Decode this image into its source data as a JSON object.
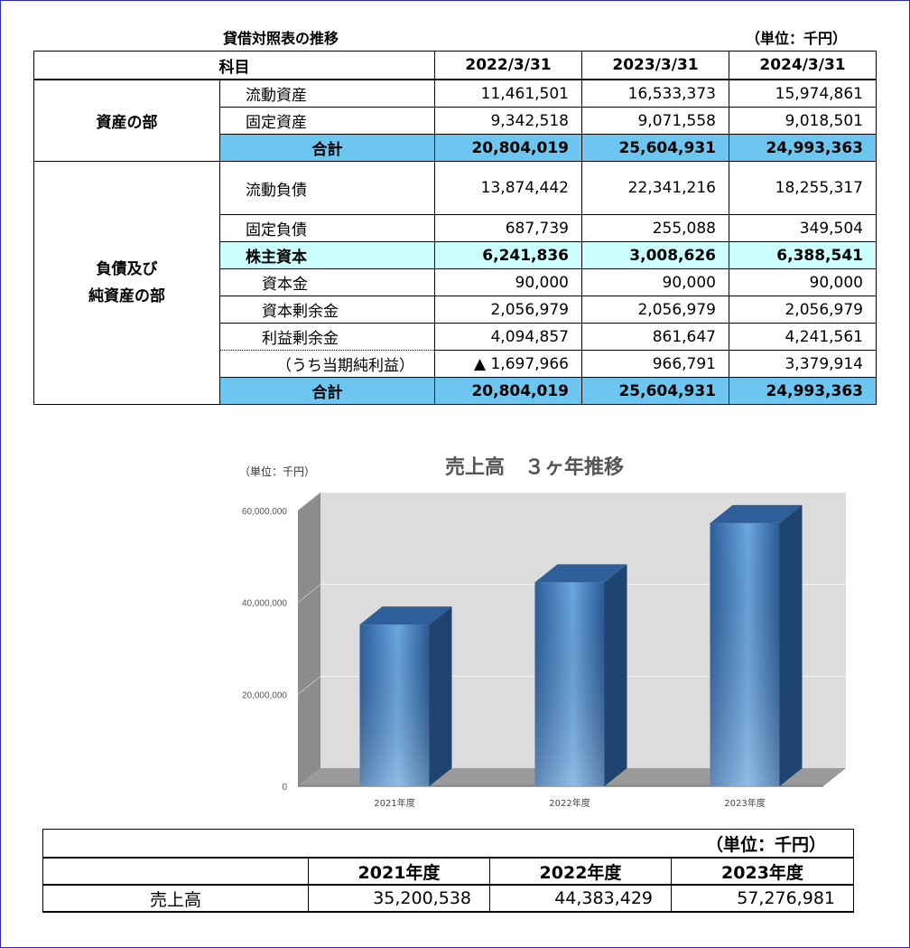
{
  "balance_sheet": {
    "title": "貸借対照表の推移",
    "unit": "（単位：千円）",
    "header": {
      "subject": "科目",
      "dates": [
        "2022/3/31",
        "2023/3/31",
        "2024/3/31"
      ]
    },
    "assets": {
      "section": "資産の部",
      "rows": [
        {
          "label": "流動資産",
          "values": [
            "11,461,501",
            "16,533,373",
            "15,974,861"
          ]
        },
        {
          "label": "固定資産",
          "values": [
            "9,342,518",
            "9,071,558",
            "9,018,501"
          ]
        }
      ],
      "total": {
        "label": "合計",
        "values": [
          "20,804,019",
          "25,604,931",
          "24,993,363"
        ]
      }
    },
    "liabilities": {
      "section_line1": "負債及び",
      "section_line2": "純資産の部",
      "current": {
        "label": "流動負債",
        "values": [
          "13,874,442",
          "22,341,216",
          "18,255,317"
        ]
      },
      "fixed": {
        "label": "固定負債",
        "values": [
          "687,739",
          "255,088",
          "349,504"
        ]
      },
      "equity": {
        "label": "株主資本",
        "values": [
          "6,241,836",
          "3,008,626",
          "6,388,541"
        ]
      },
      "capital": {
        "label": "資本金",
        "values": [
          "90,000",
          "90,000",
          "90,000"
        ]
      },
      "capital_surplus": {
        "label": "資本剰余金",
        "values": [
          "2,056,979",
          "2,056,979",
          "2,056,979"
        ]
      },
      "retained": {
        "label": "利益剰余金",
        "values": [
          "4,094,857",
          "861,647",
          "4,241,561"
        ]
      },
      "net_income": {
        "label": "（うち当期純利益）",
        "values": [
          "▲ 1,697,966",
          "966,791",
          "3,379,914"
        ]
      },
      "total": {
        "label": "合計",
        "values": [
          "20,804,019",
          "25,604,931",
          "24,993,363"
        ]
      }
    }
  },
  "chart_data": {
    "type": "bar",
    "title": "売上高　３ヶ年推移",
    "unit_label": "（単位：千円）",
    "categories": [
      "2021年度",
      "2022年度",
      "2023年度"
    ],
    "values": [
      35200538,
      44383429,
      57276981
    ],
    "y_ticks": [
      "0",
      "20,000,000",
      "40,000,000",
      "60,000,000"
    ],
    "ylim": [
      0,
      60000000
    ],
    "grid": true,
    "colors": {
      "bar": "#3d7cc0",
      "bar_top": "#2f5f9a",
      "bar_side": "#1f4470",
      "wall": "#dcdcdc",
      "wall_side": "#8c8c8c"
    }
  },
  "sales_table": {
    "unit": "（単位：千円）",
    "headers": [
      "2021年度",
      "2022年度",
      "2023年度"
    ],
    "row_label": "売上高",
    "values": [
      "35,200,538",
      "44,383,429",
      "57,276,981"
    ]
  }
}
